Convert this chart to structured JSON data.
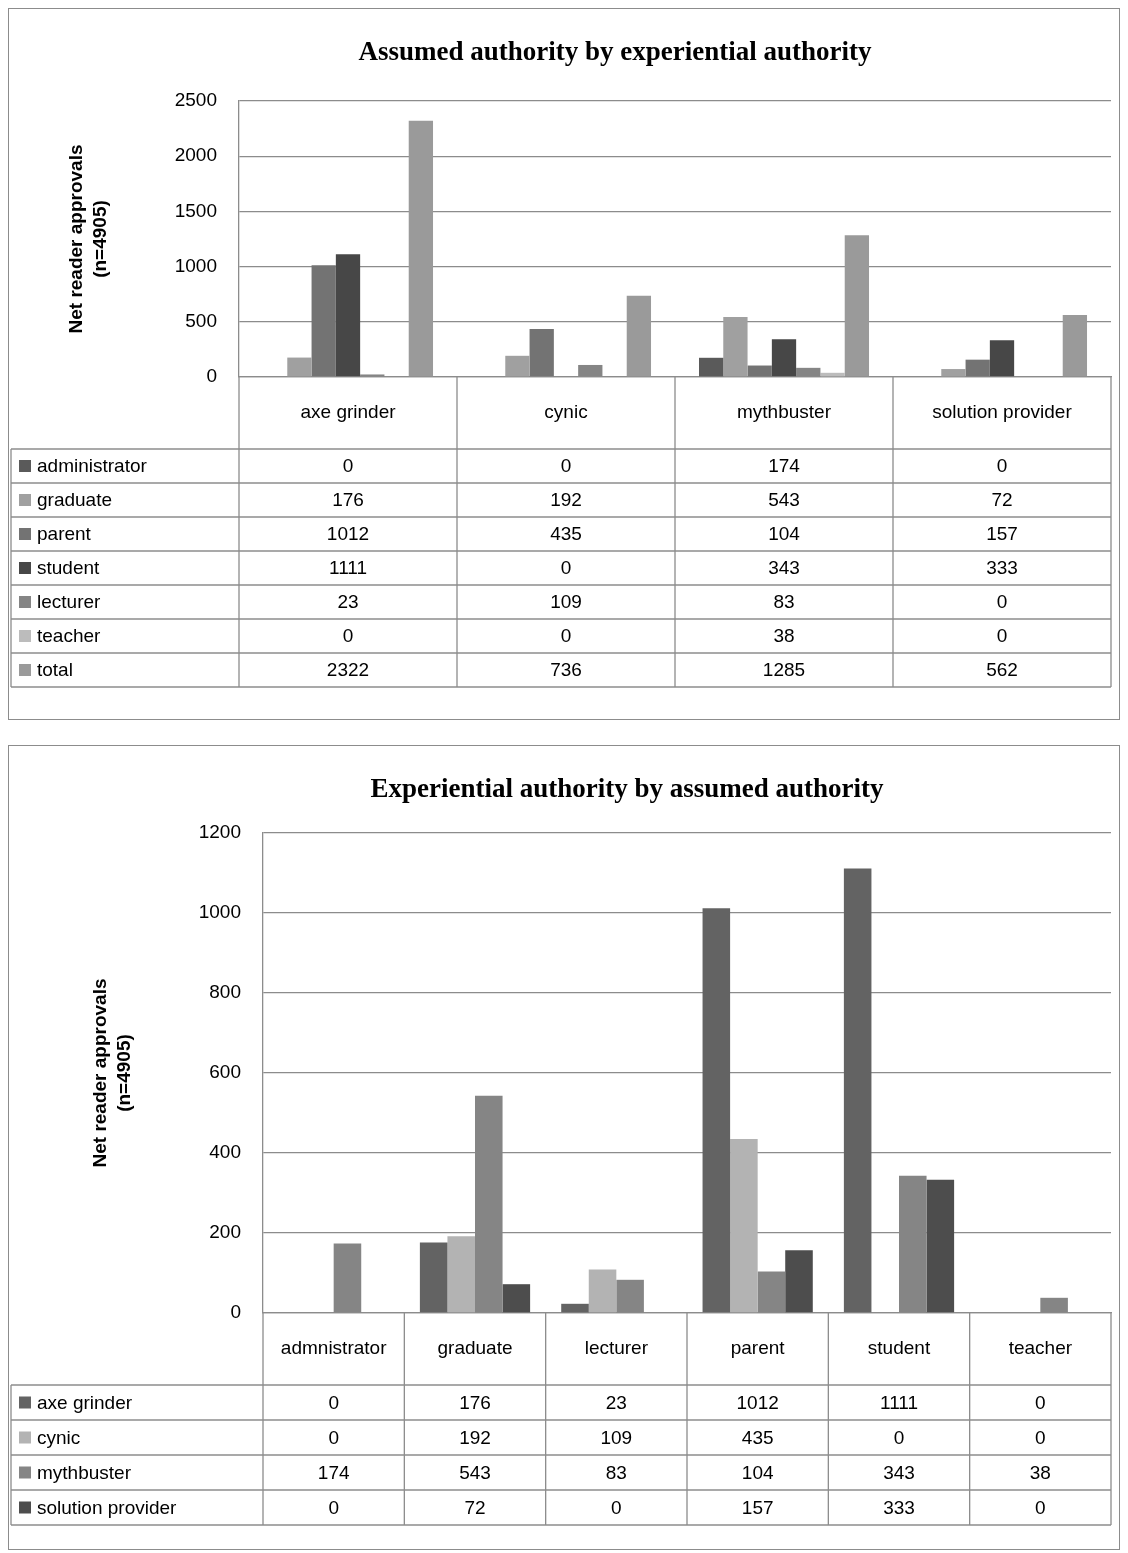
{
  "chart_data": [
    {
      "type": "bar",
      "title": "Assumed authority by experiential authority",
      "ylabel": "Net reader approvals (n=4905)",
      "categories": [
        "axe grinder",
        "cynic",
        "mythbuster",
        "solution provider"
      ],
      "series": [
        {
          "name": "administrator",
          "color": "#5a5a5a",
          "values": [
            0,
            0,
            174,
            0
          ]
        },
        {
          "name": "graduate",
          "color": "#a0a0a0",
          "values": [
            176,
            192,
            543,
            72
          ]
        },
        {
          "name": "parent",
          "color": "#737373",
          "values": [
            1012,
            435,
            104,
            157
          ]
        },
        {
          "name": "student",
          "color": "#474747",
          "values": [
            1111,
            0,
            343,
            333
          ]
        },
        {
          "name": "lecturer",
          "color": "#858585",
          "values": [
            23,
            109,
            83,
            0
          ]
        },
        {
          "name": "teacher",
          "color": "#bcbcbc",
          "values": [
            0,
            0,
            38,
            0
          ]
        },
        {
          "name": "total",
          "color": "#9a9a9a",
          "values": [
            2322,
            736,
            1285,
            562
          ]
        }
      ],
      "ylim": [
        0,
        2500
      ],
      "yticks": [
        0,
        500,
        1000,
        1500,
        2000,
        2500
      ],
      "grid": "y",
      "legend": "bottom",
      "data_labels": true
    },
    {
      "type": "bar",
      "title": "Experiential authority by assumed authority",
      "ylabel": "Net reader approvals (n=4905)",
      "categories": [
        "admnistrator",
        "graduate",
        "lecturer",
        "parent",
        "student",
        "teacher"
      ],
      "series": [
        {
          "name": "axe grinder",
          "color": "#636363",
          "values": [
            0,
            176,
            23,
            1012,
            1111,
            0
          ]
        },
        {
          "name": "cynic",
          "color": "#b3b3b3",
          "values": [
            0,
            192,
            109,
            435,
            0,
            0
          ]
        },
        {
          "name": "mythbuster",
          "color": "#858585",
          "values": [
            174,
            543,
            83,
            104,
            343,
            38
          ]
        },
        {
          "name": "solution provider",
          "color": "#4d4d4d",
          "values": [
            0,
            72,
            0,
            157,
            333,
            0
          ]
        }
      ],
      "ylim": [
        0,
        1200
      ],
      "yticks": [
        0,
        200,
        400,
        600,
        800,
        1000,
        1200
      ],
      "grid": "y",
      "legend": "bottom",
      "data_labels": true
    }
  ]
}
